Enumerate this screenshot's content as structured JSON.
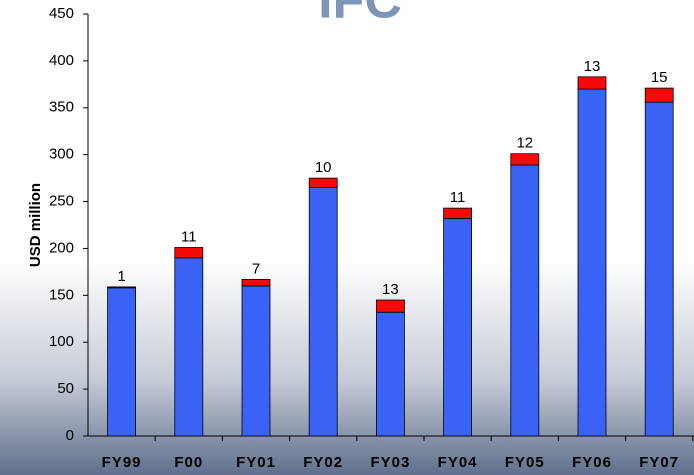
{
  "logo": "IFC",
  "chart_data": {
    "type": "stacked-bar",
    "y_label": "USD million",
    "categories": [
      "FY99",
      "F00",
      "FY01",
      "FY02",
      "FY03",
      "FY04",
      "FY05",
      "FY06",
      "FY07"
    ],
    "series": [
      {
        "color": "#3a63f5",
        "values": [
          158,
          190,
          160,
          265,
          132,
          232,
          289,
          370,
          356
        ]
      },
      {
        "color": "#f50a0a",
        "values": [
          1,
          11,
          7,
          10,
          13,
          11,
          12,
          13,
          15
        ]
      }
    ],
    "label_series": 1,
    "ylim": [
      0,
      450
    ],
    "yticks": [
      0,
      50,
      100,
      150,
      200,
      250,
      300,
      350,
      400,
      450
    ]
  }
}
